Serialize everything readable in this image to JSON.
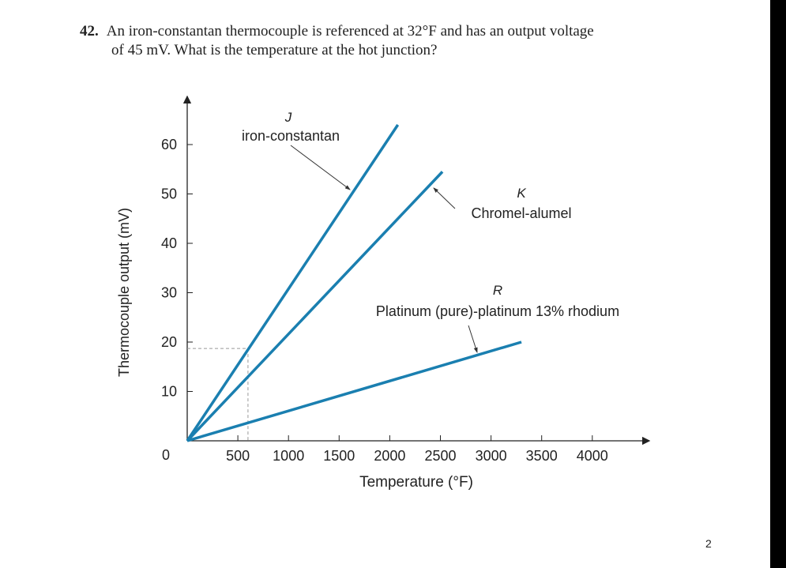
{
  "question": {
    "number": "42.",
    "line1": "An iron-constantan thermocouple is referenced at 32°F and has an output voltage",
    "line2": "of 45 mV. What is the temperature at the hot junction?"
  },
  "page_number": "2",
  "chart_data": {
    "type": "line",
    "title": "",
    "xlabel": "Temperature (°F)",
    "ylabel": "Thermocouple output (mV)",
    "xlim": [
      0,
      4500
    ],
    "ylim": [
      0,
      68
    ],
    "x_ticks": [
      500,
      1000,
      1500,
      2000,
      2500,
      3000,
      3500,
      4000
    ],
    "x_tick_labels": [
      "500",
      "1000",
      "1500",
      "2000",
      "2500",
      "3000",
      "3500",
      "4000"
    ],
    "y_ticks": [
      10,
      20,
      30,
      40,
      50,
      60
    ],
    "y_tick_labels": [
      "10",
      "20",
      "30",
      "40",
      "50",
      "60"
    ],
    "origin_label": "0",
    "grid": false,
    "line_color": "#1a7fb0",
    "series": [
      {
        "name": "J",
        "label": "iron-constantan",
        "x": [
          0,
          2080
        ],
        "y": [
          0,
          64
        ]
      },
      {
        "name": "K",
        "label": "Chromel-alumel",
        "x": [
          0,
          2520
        ],
        "y": [
          0,
          54.5
        ]
      },
      {
        "name": "R",
        "label": "Platinum (pure)-platinum 13% rhodium",
        "x": [
          0,
          3300
        ],
        "y": [
          0,
          20
        ]
      }
    ],
    "reference_point": {
      "x": 600,
      "y": 18.7
    }
  }
}
